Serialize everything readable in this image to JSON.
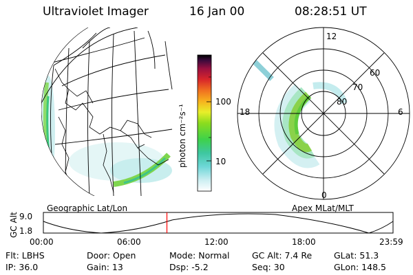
{
  "header": {
    "instrument": "Ultraviolet Imager",
    "date": "16 Jan 00",
    "time": "08:28:51 UT"
  },
  "colorbar": {
    "unit_label": "photon cm⁻²s⁻¹",
    "ticks": [
      "100",
      "10"
    ]
  },
  "panels": {
    "left_caption": "Geographic Lat/Lon",
    "right_caption": "Apex MLat/MLT"
  },
  "polar": {
    "lat_labels": [
      "60",
      "70",
      "80"
    ],
    "mlt_labels": [
      "12",
      "18",
      "6",
      "0"
    ]
  },
  "altitude_plot": {
    "label": "GC Alt",
    "y_ticks": [
      "9.0",
      "1.8"
    ],
    "x_ticks": [
      "00:00",
      "06:00",
      "12:00",
      "18:00",
      "23:59"
    ],
    "current_time_hours": 8.48,
    "marker_color": "#ff0000"
  },
  "status": {
    "filter": "Flt: LBHS",
    "door": "Door: Open",
    "mode": "Mode: Normal",
    "gc_alt": "GC Alt: 7.4 Re",
    "glat": "GLat:  51.3",
    "ip": "IP: 36.0",
    "gain": "Gain: 13",
    "dsp": "Dsp:    -5.2",
    "seq": "Seq: 30",
    "glon": "GLon: 148.5"
  }
}
